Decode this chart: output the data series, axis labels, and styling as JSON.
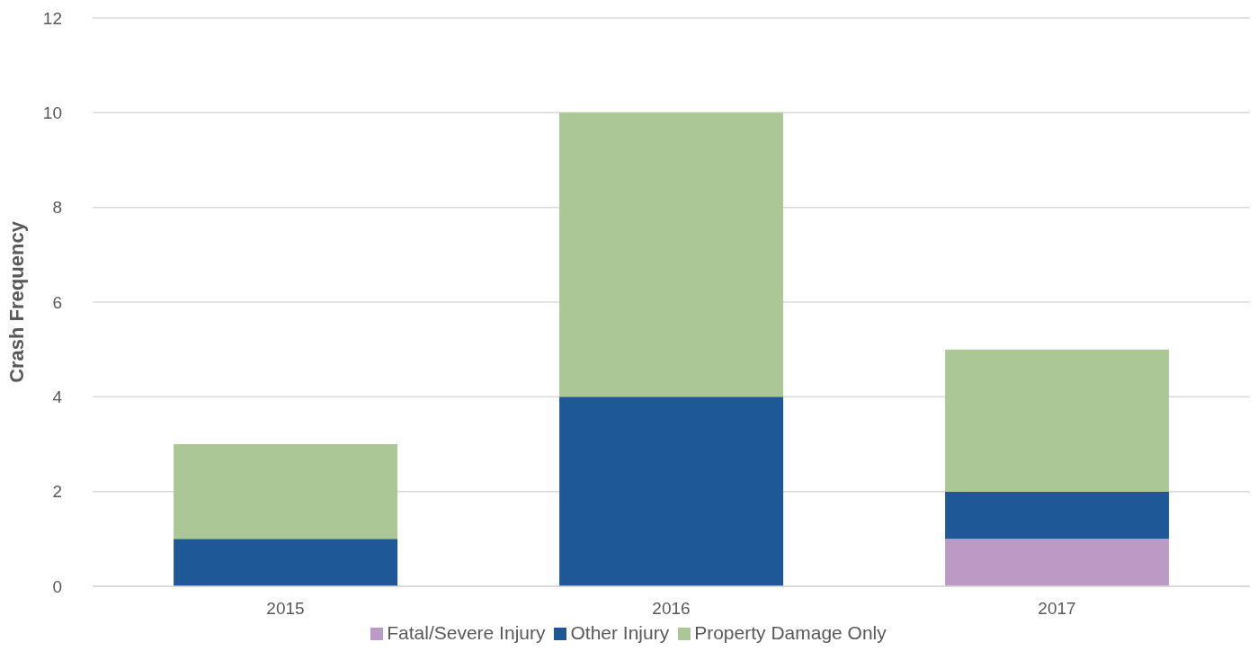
{
  "chart_data": {
    "type": "bar",
    "stacked": true,
    "categories": [
      "2015",
      "2016",
      "2017"
    ],
    "series": [
      {
        "name": "Fatal/Severe Injury",
        "color": "#bb9bc6",
        "values": [
          0,
          0,
          1
        ]
      },
      {
        "name": "Other Injury",
        "color": "#1f5896",
        "values": [
          1,
          4,
          1
        ]
      },
      {
        "name": "Property Damage Only",
        "color": "#aac795",
        "values": [
          2,
          6,
          3
        ]
      }
    ],
    "ylabel": "Crash Frequency",
    "ylim": [
      0,
      12
    ],
    "yticks": [
      0,
      2,
      4,
      6,
      8,
      10,
      12
    ],
    "grid": "y",
    "legend": "bottom"
  }
}
